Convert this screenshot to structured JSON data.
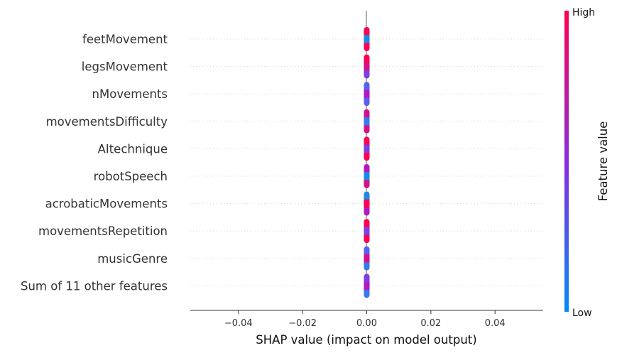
{
  "chart_data": {
    "type": "scatter",
    "subtype": "shap-beeswarm",
    "features": [
      "feetMovement",
      "legsMovement",
      "nMovements",
      "movementsDifficulty",
      "AItechnique",
      "robotSpeech",
      "acrobaticMovements",
      "movementsRepetition",
      "musicGenre",
      "Sum of 11 other features"
    ],
    "shap_values_note": "all SHAP values are 0.00 for every feature",
    "x_ticks": [
      -0.04,
      -0.02,
      0.0,
      0.02,
      0.04
    ],
    "x_tick_labels": [
      "−0.04",
      "−0.02",
      "0.00",
      "0.02",
      "0.04"
    ],
    "xlim": [
      -0.055,
      0.055
    ],
    "xlabel": "SHAP value (impact on model output)",
    "colorbar": {
      "title": "Feature value",
      "high_label": "High",
      "low_label": "Low",
      "color_high": "#ff0052",
      "color_mid": "#8c2ae0",
      "color_low": "#008bfb"
    },
    "point_pattern": [
      [
        "#ff0052",
        "#1e88e5",
        "#ff0052"
      ],
      [
        "#ff0052",
        "#d1128a",
        "#7b3fe4"
      ],
      [
        "#5b5ff0",
        "#b01ac0",
        "#5b5ff0"
      ],
      [
        "#d1128a",
        "#3a78ec",
        "#d1128a"
      ],
      [
        "#ff0052",
        "#7b3fe4",
        "#ff0052"
      ],
      [
        "#b01ac0",
        "#1e88e5",
        "#d1128a"
      ],
      [
        "#1e88e5",
        "#ff0052",
        "#b01ac0"
      ],
      [
        "#ff0052",
        "#7b3fe4",
        "#ff0052"
      ],
      [
        "#5b5ff0",
        "#d1128a",
        "#3a78ec"
      ],
      [
        "#7b3fe4",
        "#b01ac0",
        "#3a78ec"
      ]
    ]
  }
}
